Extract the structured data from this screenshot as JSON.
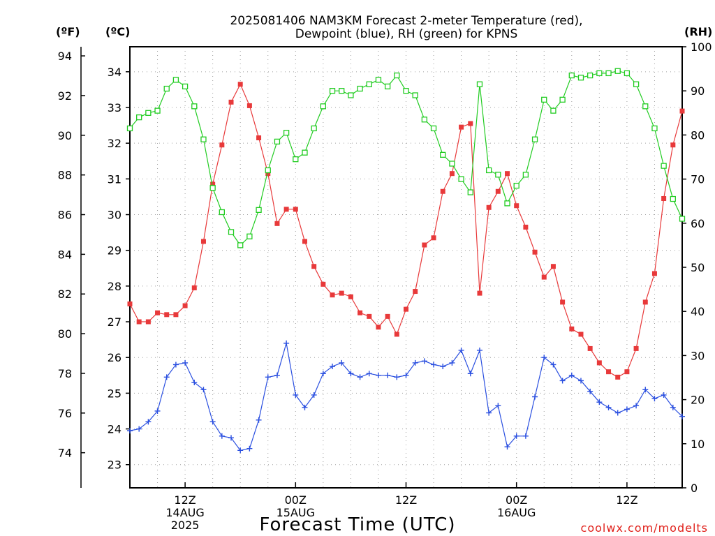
{
  "title_line1": "2025081406 NAM3KM Forecast 2-meter Temperature (red),",
  "title_line2": "Dewpoint (blue), RH (green) for KPNS",
  "unit_f": "(ºF)",
  "unit_c": "(ºC)",
  "unit_rh": "(RH)",
  "x_axis_label": "Forecast Time (UTC)",
  "credit": "coolwx.com/modelts",
  "colors": {
    "temperature": "#e8393a",
    "dewpoint": "#2a4fe0",
    "rh": "#21cc21",
    "grid": "#a0a0a0"
  },
  "chart_data": {
    "type": "line",
    "title": "2025081406 NAM3KM Forecast 2-meter Temperature (red), Dewpoint (blue), RH (green) for KPNS",
    "xlabel": "Forecast Time (UTC)",
    "x_start": "2025-08-14 06Z",
    "x_step_hours": 1,
    "x_tick_labels": [
      {
        "hours": 6,
        "lines": [
          "12Z",
          "14AUG",
          "2025"
        ]
      },
      {
        "hours": 18,
        "lines": [
          "00Z",
          "15AUG"
        ]
      },
      {
        "hours": 30,
        "lines": [
          "12Z"
        ]
      },
      {
        "hours": 42,
        "lines": [
          "00Z",
          "16AUG"
        ]
      },
      {
        "hours": 54,
        "lines": [
          "12Z"
        ]
      }
    ],
    "xlim_hours": [
      0,
      60
    ],
    "left_axis_celsius": {
      "range": [
        22.35,
        34.7
      ],
      "ticks": [
        23,
        24,
        25,
        26,
        27,
        28,
        29,
        30,
        31,
        32,
        33,
        34
      ]
    },
    "far_left_axis_fahrenheit": {
      "ticks": [
        74,
        76,
        78,
        80,
        82,
        84,
        86,
        88,
        90,
        92,
        94
      ]
    },
    "right_axis_rh": {
      "range": [
        0,
        100
      ],
      "ticks": [
        0,
        10,
        20,
        30,
        40,
        50,
        60,
        70,
        80,
        90,
        100
      ]
    },
    "grid": true,
    "series": [
      {
        "name": "Temperature (red)",
        "axis": "celsius",
        "marker": "filled-square",
        "values": [
          27.5,
          27.0,
          27.0,
          27.25,
          27.2,
          27.2,
          27.45,
          27.95,
          29.25,
          30.85,
          31.95,
          33.15,
          33.65,
          33.05,
          32.15,
          31.15,
          29.75,
          30.15,
          30.15,
          29.25,
          28.55,
          28.05,
          27.75,
          27.8,
          27.7,
          27.25,
          27.15,
          26.85,
          27.15,
          26.65,
          27.35,
          27.85,
          29.15,
          29.35,
          30.65,
          31.15,
          32.45,
          32.55,
          27.8,
          30.2,
          30.65,
          31.15,
          30.25,
          29.65,
          28.95,
          28.25,
          28.55,
          27.55,
          26.8,
          26.65,
          26.25,
          25.85,
          25.6,
          25.45,
          25.6,
          26.25,
          27.55,
          28.35,
          30.45,
          31.95,
          32.9
        ]
      },
      {
        "name": "Dewpoint (blue)",
        "axis": "celsius",
        "marker": "plus",
        "values": [
          23.95,
          24.0,
          24.2,
          24.5,
          25.45,
          25.8,
          25.85,
          25.3,
          25.1,
          24.2,
          23.8,
          23.75,
          23.4,
          23.45,
          24.25,
          25.45,
          25.5,
          26.4,
          24.95,
          24.6,
          24.95,
          25.55,
          25.75,
          25.85,
          25.55,
          25.45,
          25.55,
          25.5,
          25.5,
          25.45,
          25.5,
          25.85,
          25.9,
          25.8,
          25.75,
          25.85,
          26.2,
          25.55,
          26.2,
          24.45,
          24.65,
          23.5,
          23.8,
          23.8,
          24.9,
          26.0,
          25.8,
          25.35,
          25.5,
          25.35,
          25.05,
          24.75,
          24.6,
          24.45,
          24.55,
          24.65,
          25.1,
          24.85,
          24.95,
          24.6,
          24.35
        ]
      },
      {
        "name": "RH (green)",
        "axis": "rh",
        "marker": "open-square",
        "values": [
          81.5,
          84,
          85,
          85.5,
          90.5,
          92.5,
          91,
          86.5,
          79,
          68,
          62.5,
          58,
          55,
          57,
          63,
          72,
          78.5,
          80.5,
          74.5,
          76,
          81.5,
          86.5,
          90,
          90,
          89,
          90.5,
          91.5,
          92.5,
          91,
          93.5,
          90,
          89,
          83.5,
          81.5,
          75.5,
          73.5,
          70,
          67,
          91.5,
          72,
          71,
          64.5,
          68.5,
          71,
          79,
          88,
          85.5,
          88,
          93.5,
          93,
          93.5,
          94,
          94,
          94.5,
          94,
          91.5,
          86.5,
          81.5,
          73,
          65.5,
          61
        ]
      }
    ]
  }
}
